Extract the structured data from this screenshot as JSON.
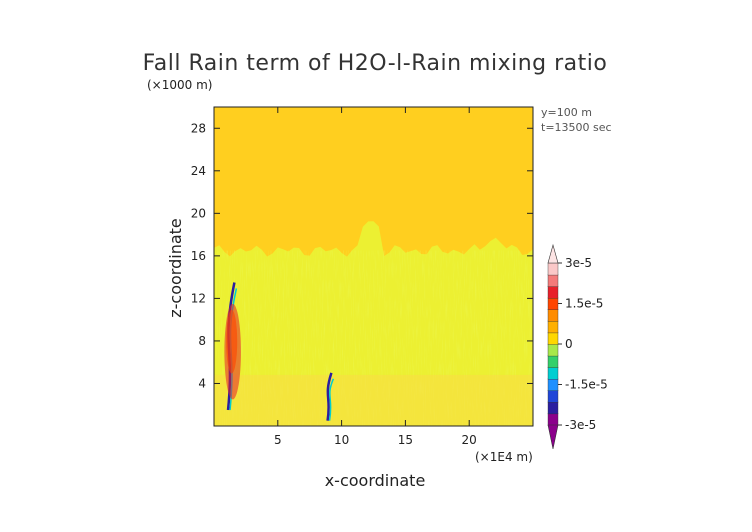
{
  "chart_data": {
    "type": "heatmap",
    "title": "Fall Rain term of H2O-l-Rain mixing ratio",
    "xlabel": "x-coordinate",
    "ylabel": "z-coordinate",
    "x_scale_note": "(×1E4 m)",
    "y_scale_note": "(×1000 m)",
    "annotations": [
      "y=100 m",
      "t=13500 sec"
    ],
    "xlim": [
      0,
      25
    ],
    "ylim": [
      0,
      30
    ],
    "x_ticks": [
      5,
      10,
      15,
      20
    ],
    "y_ticks": [
      4,
      8,
      12,
      16,
      20,
      24,
      28
    ],
    "field": {
      "background_value": 0,
      "cloud_top_km": 16.5,
      "tower_tops": [
        {
          "x": 12.3,
          "top": 19.5
        },
        {
          "x": 22.0,
          "top": 17.8
        }
      ],
      "negative_streaks": [
        {
          "x_range": [
            0.6,
            1.6
          ],
          "z_range": [
            1.5,
            13.5
          ]
        },
        {
          "x_range": [
            8.6,
            9.2
          ],
          "z_range": [
            0.5,
            5.0
          ]
        }
      ],
      "positive_streaks": [
        {
          "x_range": [
            0.5,
            1.8
          ],
          "z_range": [
            2.5,
            11.5
          ]
        }
      ]
    },
    "colorbar": {
      "min": -3e-05,
      "max": 3e-05,
      "labels": [
        "3e-5",
        "1.5e-5",
        "0",
        "-1.5e-5",
        "-3e-5"
      ],
      "label_values": [
        3e-05,
        1.5e-05,
        0,
        -1.5e-05,
        -3e-05
      ],
      "colors": [
        "#8b008b",
        "#2b1ea0",
        "#2046d8",
        "#1e90ff",
        "#00ced1",
        "#34d06a",
        "#a8e84a",
        "#ffd700",
        "#ffb000",
        "#ff8c00",
        "#ff4500",
        "#e8202a",
        "#f47a7a",
        "#fbc8c8"
      ]
    }
  }
}
